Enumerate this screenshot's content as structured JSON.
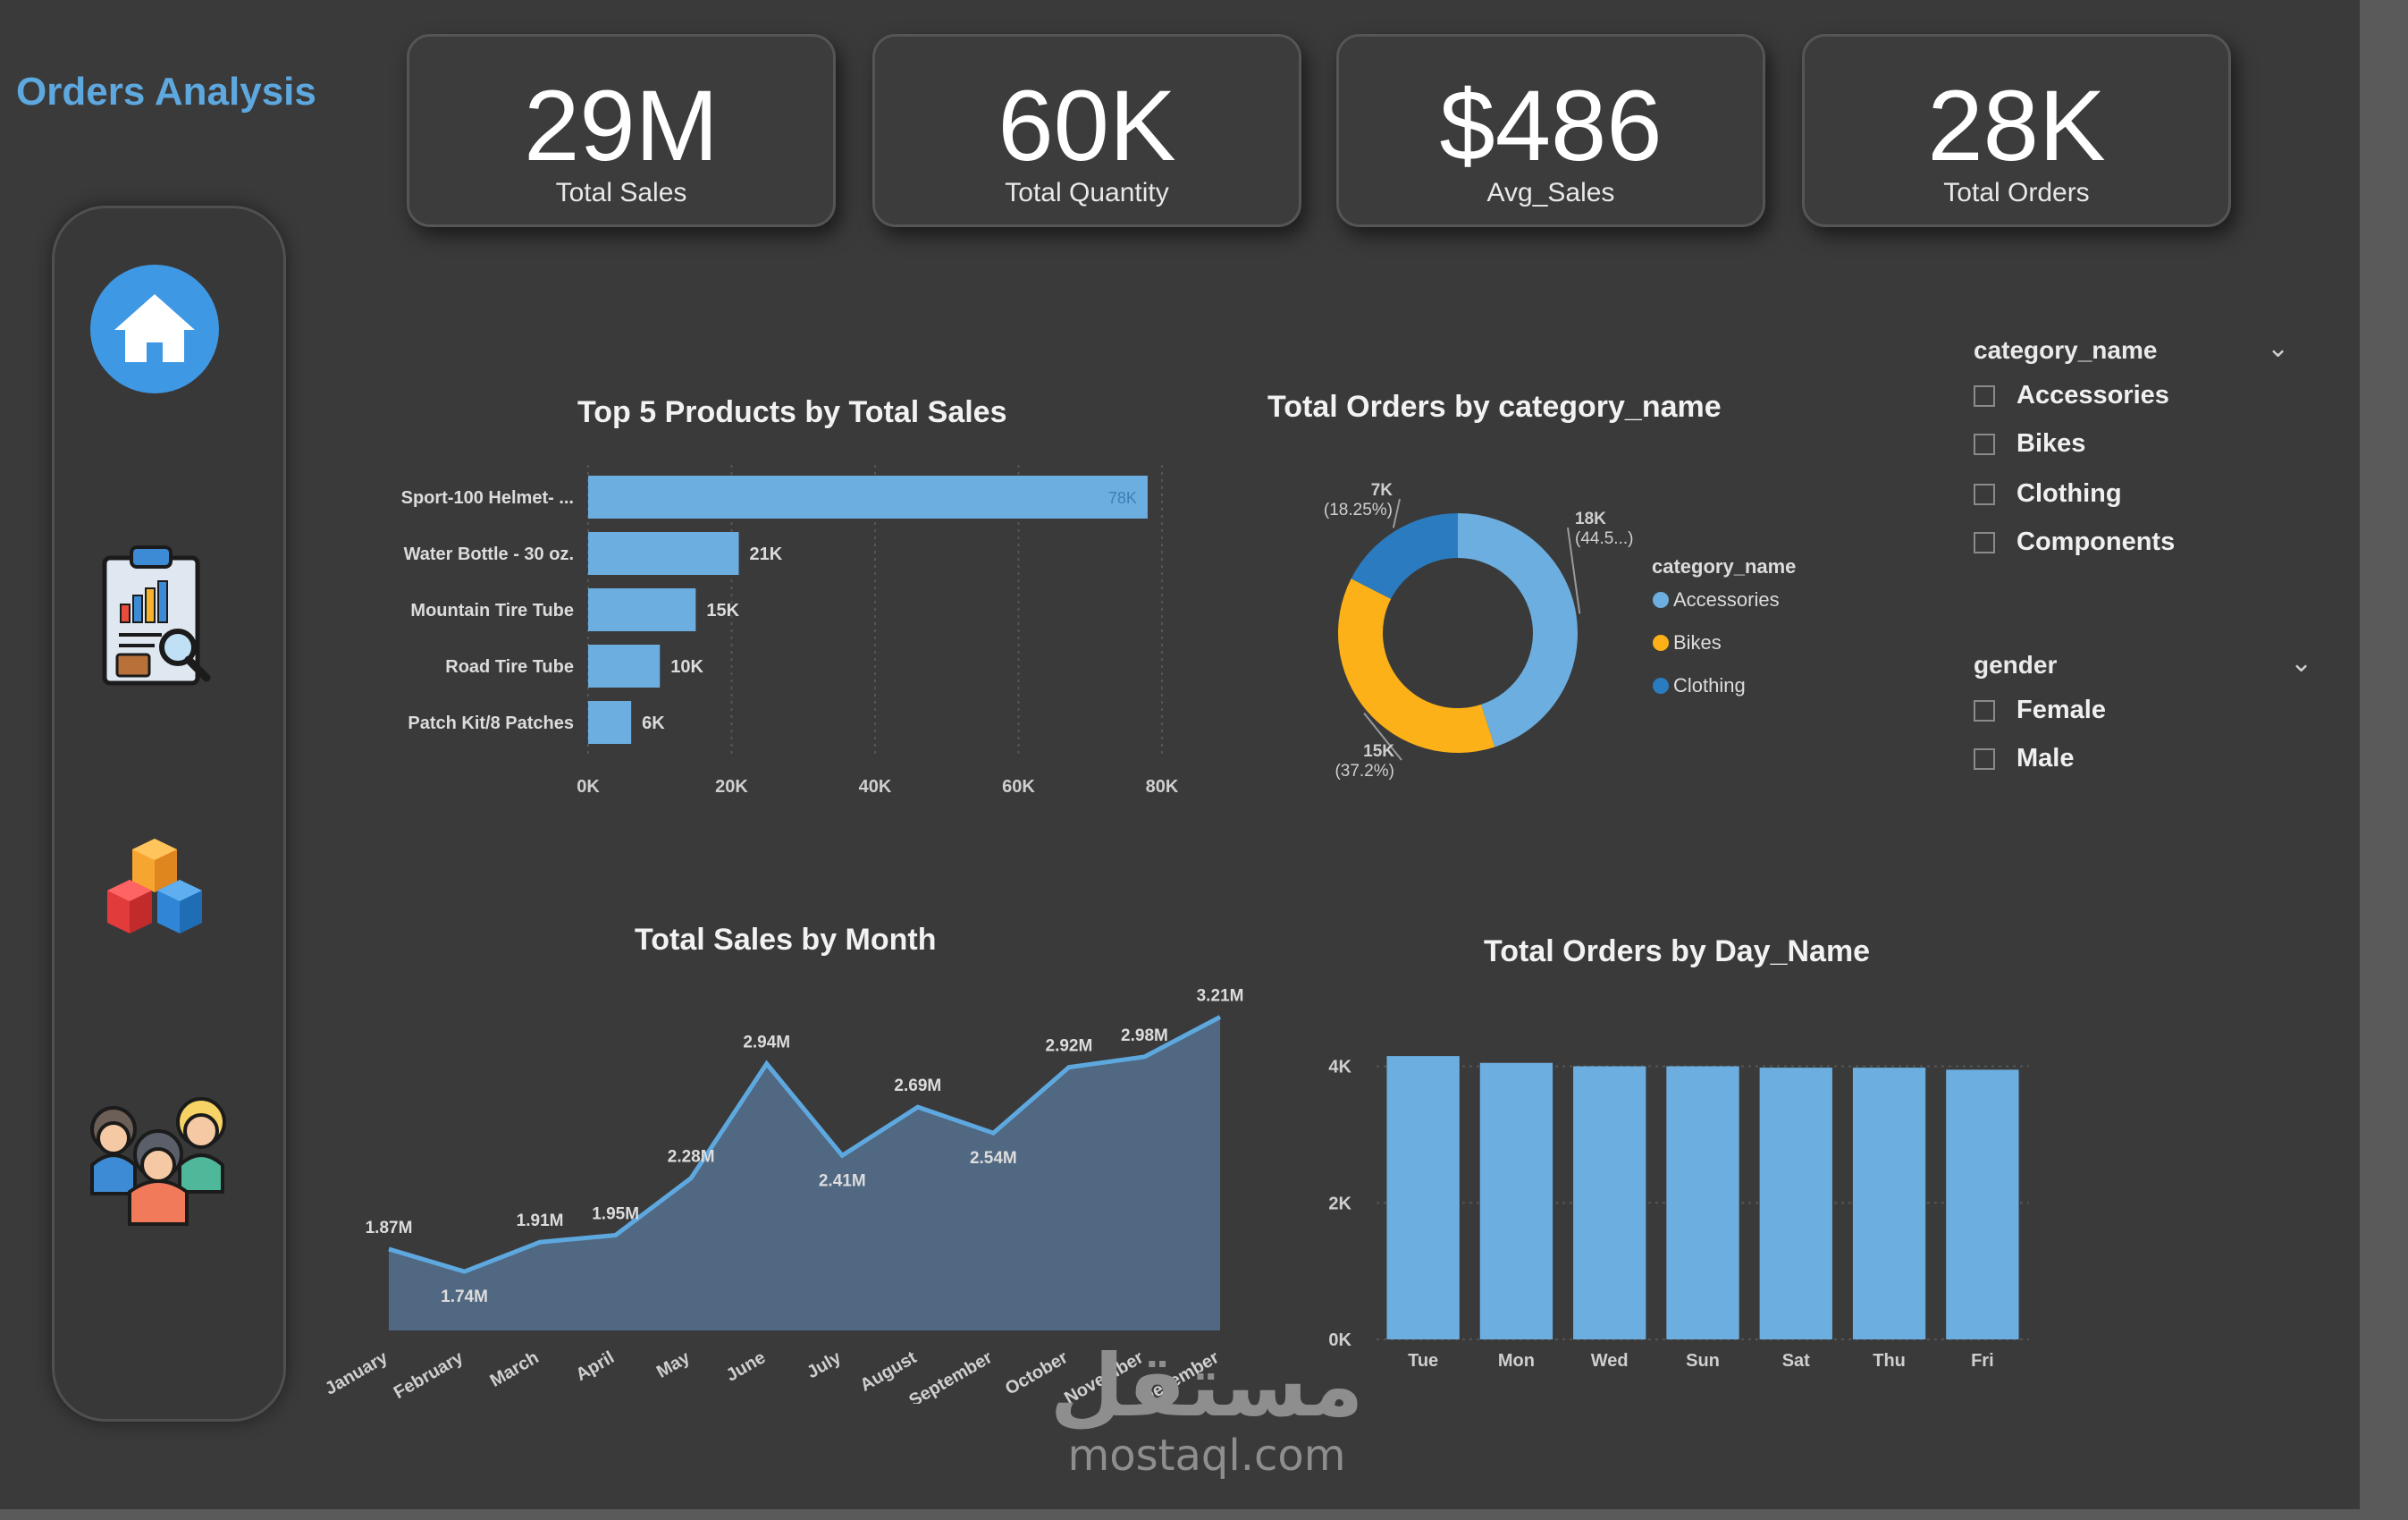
{
  "app": {
    "title": "Orders Analysis"
  },
  "nav": [
    {
      "icon": "home-icon"
    },
    {
      "icon": "report-analysis-icon"
    },
    {
      "icon": "product-cubes-icon"
    },
    {
      "icon": "customers-group-icon"
    }
  ],
  "kpis": [
    {
      "value": "29M",
      "label": "Total Sales"
    },
    {
      "value": "60K",
      "label": "Total Quantity"
    },
    {
      "value": "$486",
      "label": "Avg_Sales"
    },
    {
      "value": "28K",
      "label": "Total Orders"
    }
  ],
  "colors": {
    "bar": "#6caee0",
    "accent": "#5ea8e0",
    "bikes": "#fbb117",
    "accessories": "#6caee0",
    "clothing": "#2b7bc0",
    "area": "#506882"
  },
  "slicers": {
    "category": {
      "title": "category_name",
      "items": [
        "Accessories",
        "Bikes",
        "Clothing",
        "Components"
      ]
    },
    "gender": {
      "title": "gender",
      "items": [
        "Female",
        "Male"
      ]
    }
  },
  "watermark": {
    "arabic": "مستقل",
    "latin": "mostaql.com"
  },
  "chart_data": [
    {
      "type": "bar",
      "orientation": "horizontal",
      "title": "Top 5 Products by Total Sales",
      "categories": [
        "Sport-100 Helmet- ...",
        "Water Bottle - 30 oz.",
        "Mountain Tire Tube",
        "Road Tire Tube",
        "Patch Kit/8 Patches"
      ],
      "values": [
        78000,
        21000,
        15000,
        10000,
        6000
      ],
      "data_labels": [
        "78K",
        "21K",
        "15K",
        "10K",
        "6K"
      ],
      "xlim": [
        0,
        80000
      ],
      "x_ticks": [
        "0K",
        "20K",
        "40K",
        "60K",
        "80K"
      ],
      "grid": true
    },
    {
      "type": "pie",
      "style": "donut",
      "title": "Total Orders by category_name",
      "legend_title": "category_name",
      "legend_position": "right",
      "categories": [
        "Accessories",
        "Bikes",
        "Clothing"
      ],
      "values": [
        18000,
        15000,
        7000
      ],
      "data_labels": [
        "18K",
        "15K",
        "7K"
      ],
      "percent_labels": [
        "(44.5...)",
        "(37.2%)",
        "(18.25%)"
      ]
    },
    {
      "type": "area",
      "title": "Total Sales by Month",
      "categories": [
        "January",
        "February",
        "March",
        "April",
        "May",
        "June",
        "July",
        "August",
        "September",
        "October",
        "November",
        "December"
      ],
      "values": [
        1.87,
        1.74,
        1.91,
        1.95,
        2.28,
        2.94,
        2.41,
        2.69,
        2.54,
        2.92,
        2.98,
        3.21
      ],
      "data_labels": [
        "1.87M",
        "1.74M",
        "1.91M",
        "1.95M",
        "2.28M",
        "2.94M",
        "2.41M",
        "2.69M",
        "2.54M",
        "2.92M",
        "2.98M",
        "3.21M"
      ],
      "ylim": [
        1.4,
        3.3
      ]
    },
    {
      "type": "bar",
      "title": "Total Orders by Day_Name",
      "categories": [
        "Tue",
        "Mon",
        "Wed",
        "Sun",
        "Sat",
        "Thu",
        "Fri"
      ],
      "values": [
        4150,
        4050,
        4000,
        4000,
        3980,
        3980,
        3950
      ],
      "ylim": [
        0,
        4400
      ],
      "y_ticks": [
        "0K",
        "2K",
        "4K"
      ],
      "y_tick_values": [
        0,
        2000,
        4000
      ],
      "grid": true
    }
  ]
}
